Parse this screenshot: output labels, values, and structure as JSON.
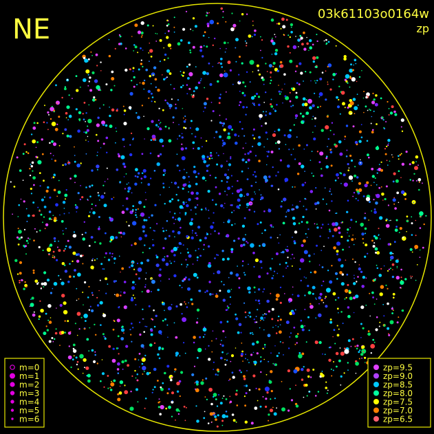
{
  "header": {
    "corner": "NE",
    "image_id": "03k61103o0164w",
    "mode": "zp"
  },
  "magnitude_legend": {
    "color": "#e000e0",
    "items": [
      {
        "label": "m=0"
      },
      {
        "label": "m=1"
      },
      {
        "label": "m=2"
      },
      {
        "label": "m=3"
      },
      {
        "label": "m=4"
      },
      {
        "label": "m=5"
      },
      {
        "label": "m=6"
      }
    ]
  },
  "zp_legend": {
    "items": [
      {
        "label": "zp=9.5",
        "color": "#e040ff"
      },
      {
        "label": "zp=9.0",
        "color": "#b040ff"
      },
      {
        "label": "zp=8.5",
        "color": "#00c8ff"
      },
      {
        "label": "zp=8.0",
        "color": "#00ffa0"
      },
      {
        "label": "zp=7.5",
        "color": "#ffff00"
      },
      {
        "label": "zp=7.0",
        "color": "#ff8000"
      },
      {
        "label": "zp=6.5",
        "color": "#ff6070"
      }
    ]
  }
}
